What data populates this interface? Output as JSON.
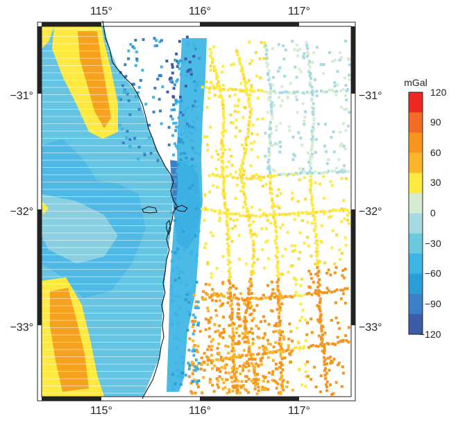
{
  "map": {
    "lon_ticks": [
      "115°",
      "116°",
      "117°"
    ],
    "lat_ticks": [
      "−31°",
      "−32°",
      "−33°"
    ],
    "lon_range": [
      114.5,
      117.5
    ],
    "lat_range": [
      -33.6,
      -30.5
    ]
  },
  "colorbar": {
    "unit": "mGal",
    "ticks": [
      "120",
      "90",
      "60",
      "30",
      "0",
      "−30",
      "−60",
      "−90",
      "−120"
    ],
    "range": [
      -120,
      120
    ],
    "colors": [
      "#ee2822",
      "#f36b25",
      "#f7941d",
      "#fbb52a",
      "#fde93f",
      "#d6ecd0",
      "#a8dae3",
      "#6bcadd",
      "#3cb4e5",
      "#2b9ed8",
      "#3c7fc4",
      "#3d5ca8"
    ]
  },
  "legend_colors": {
    "land_low": "#3fb6e6",
    "land_mid": "#58c0e0",
    "offshore_cyan": "#59c3db",
    "high_yellow": "#fde93f",
    "high_orange": "#f7a21e",
    "coast": "#111111"
  }
}
